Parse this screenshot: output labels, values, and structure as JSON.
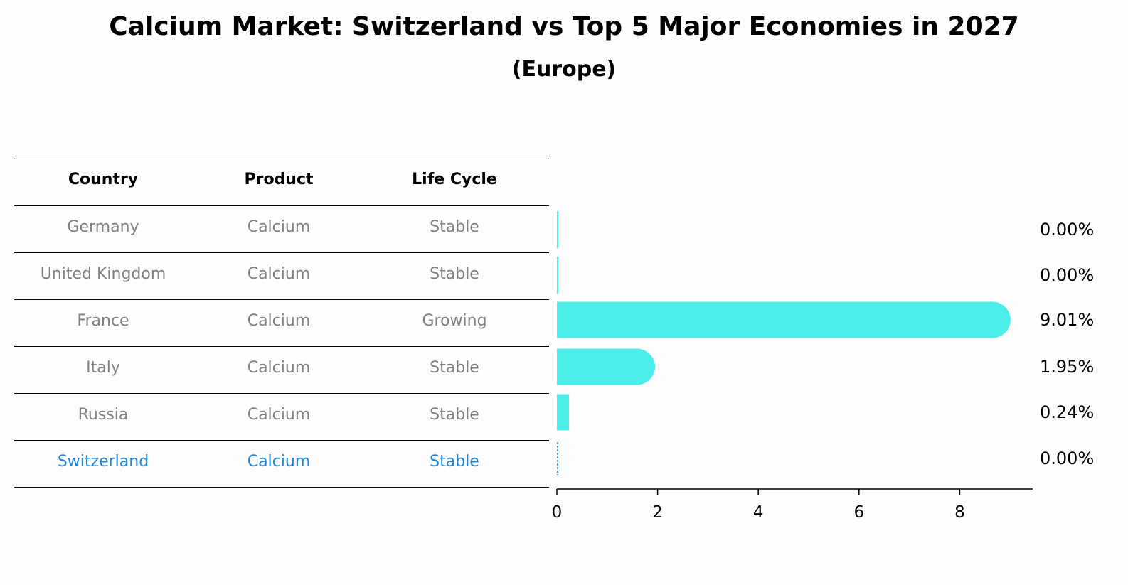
{
  "title": "Calcium Market: Switzerland vs Top 5 Major Economies in 2027",
  "subtitle": "(Europe)",
  "table": {
    "headers": [
      "Country",
      "Product",
      "Life Cycle"
    ],
    "rows": [
      {
        "country": "Germany",
        "product": "Calcium",
        "life_cycle": "Stable"
      },
      {
        "country": "United Kingdom",
        "product": "Calcium",
        "life_cycle": "Stable"
      },
      {
        "country": "France",
        "product": "Calcium",
        "life_cycle": "Growing"
      },
      {
        "country": "Italy",
        "product": "Calcium",
        "life_cycle": "Stable"
      },
      {
        "country": "Russia",
        "product": "Calcium",
        "life_cycle": "Stable"
      },
      {
        "country": "Switzerland",
        "product": "Calcium",
        "life_cycle": "Stable"
      }
    ],
    "highlight_row": "Switzerland"
  },
  "colors": {
    "bar": "#4deeea",
    "highlight_text": "#1f86d6",
    "muted_text": "#808080"
  },
  "chart_data": {
    "type": "bar",
    "orientation": "horizontal",
    "categories": [
      "Germany",
      "United Kingdom",
      "France",
      "Italy",
      "Russia",
      "Switzerland"
    ],
    "values": [
      0.0,
      0.0,
      9.01,
      1.95,
      0.24,
      0.0
    ],
    "value_labels": [
      "0.00%",
      "0.00%",
      "9.01%",
      "1.95%",
      "0.24%",
      "0.00%"
    ],
    "xticks": [
      0,
      2,
      4,
      6,
      8
    ],
    "xlim": [
      0,
      9.5
    ]
  }
}
